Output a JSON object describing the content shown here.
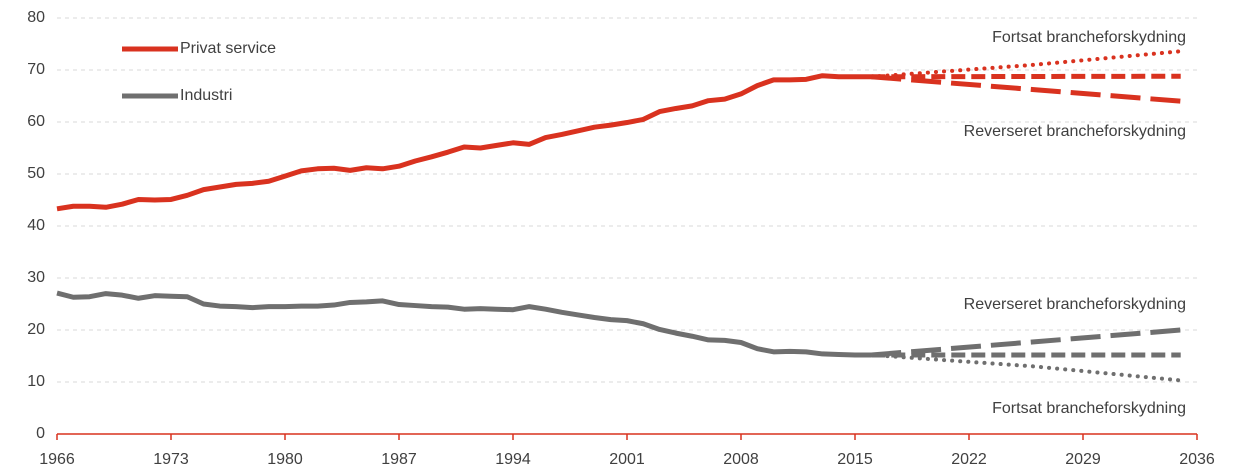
{
  "chart_data": {
    "type": "line",
    "xlim": [
      1966,
      2036
    ],
    "xticks": [
      1966,
      1973,
      1980,
      1987,
      1994,
      2001,
      2008,
      2015,
      2022,
      2029,
      2036
    ],
    "ylim": [
      0,
      80
    ],
    "yticks": [
      0,
      10,
      20,
      30,
      40,
      50,
      60,
      70,
      80
    ],
    "grid": true,
    "legend": "upper left",
    "series": [
      {
        "name": "Privat service",
        "color": "#d9321f",
        "style": "solid",
        "x": [
          1966,
          1967,
          1968,
          1969,
          1970,
          1971,
          1972,
          1973,
          1974,
          1975,
          1976,
          1977,
          1978,
          1979,
          1980,
          1981,
          1982,
          1983,
          1984,
          1985,
          1986,
          1987,
          1988,
          1989,
          1990,
          1991,
          1992,
          1993,
          1994,
          1995,
          1996,
          1997,
          1998,
          1999,
          2000,
          2001,
          2002,
          2003,
          2004,
          2005,
          2006,
          2007,
          2008,
          2009,
          2010,
          2011,
          2012,
          2013,
          2014,
          2015,
          2016
        ],
        "values": [
          43.3,
          43.8,
          43.8,
          43.6,
          44.2,
          45.1,
          45.0,
          45.1,
          45.9,
          47.0,
          47.5,
          48.0,
          48.2,
          48.6,
          49.6,
          50.6,
          51.0,
          51.1,
          50.7,
          51.2,
          51.0,
          51.5,
          52.5,
          53.3,
          54.2,
          55.2,
          55.0,
          55.5,
          56.0,
          55.7,
          57.0,
          57.6,
          58.3,
          59.0,
          59.4,
          59.9,
          60.5,
          62.0,
          62.6,
          63.1,
          64.1,
          64.4,
          65.4,
          67.0,
          68.1,
          68.1,
          68.2,
          68.9,
          68.7,
          68.7,
          68.7
        ]
      },
      {
        "name": "Industri",
        "color": "#6f6f6f",
        "style": "solid",
        "x": [
          1966,
          1967,
          1968,
          1969,
          1970,
          1971,
          1972,
          1973,
          1974,
          1975,
          1976,
          1977,
          1978,
          1979,
          1980,
          1981,
          1982,
          1983,
          1984,
          1985,
          1986,
          1987,
          1988,
          1989,
          1990,
          1991,
          1992,
          1993,
          1994,
          1995,
          1996,
          1997,
          1998,
          1999,
          2000,
          2001,
          2002,
          2003,
          2004,
          2005,
          2006,
          2007,
          2008,
          2009,
          2010,
          2011,
          2012,
          2013,
          2014,
          2015,
          2016
        ],
        "values": [
          27.1,
          26.3,
          26.4,
          27.0,
          26.7,
          26.1,
          26.6,
          26.5,
          26.4,
          25.0,
          24.6,
          24.5,
          24.3,
          24.5,
          24.5,
          24.6,
          24.6,
          24.8,
          25.3,
          25.4,
          25.6,
          24.9,
          24.7,
          24.5,
          24.4,
          24.0,
          24.1,
          24.0,
          23.9,
          24.5,
          24.0,
          23.4,
          22.9,
          22.4,
          22.0,
          21.8,
          21.2,
          20.1,
          19.4,
          18.8,
          18.1,
          18.0,
          17.6,
          16.4,
          15.8,
          15.9,
          15.8,
          15.4,
          15.3,
          15.2,
          15.2
        ]
      },
      {
        "color": "#d9321f",
        "style": "dotted",
        "x": [
          2016,
          2026,
          2035
        ],
        "values": [
          68.7,
          71.0,
          73.6
        ]
      },
      {
        "color": "#d9321f",
        "style": "dashed",
        "x": [
          2016,
          2035
        ],
        "values": [
          68.7,
          68.8
        ]
      },
      {
        "color": "#d9321f",
        "style": "longdash",
        "x": [
          2016,
          2035
        ],
        "values": [
          68.7,
          64.0
        ]
      },
      {
        "color": "#6f6f6f",
        "style": "longdash",
        "x": [
          2016,
          2035
        ],
        "values": [
          15.2,
          20.0
        ]
      },
      {
        "color": "#6f6f6f",
        "style": "dashed",
        "x": [
          2016,
          2035
        ],
        "values": [
          15.2,
          15.2
        ]
      },
      {
        "color": "#6f6f6f",
        "style": "dotted",
        "x": [
          2016,
          2026,
          2035
        ],
        "values": [
          15.2,
          13.0,
          10.3
        ]
      }
    ],
    "annotations": [
      "Fortsat brancheforskydning",
      "Reverseret brancheforskydning",
      "Reverseret brancheforskydning",
      "Fortsat brancheforskydning"
    ]
  }
}
